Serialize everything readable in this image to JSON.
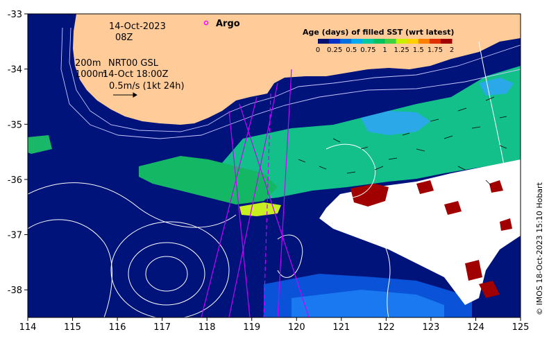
{
  "map": {
    "date": "14-Oct-2023",
    "hour": "08Z",
    "depth_shallow": "200m",
    "depth_deep": "1000m",
    "product": "NRT00 GSL",
    "product_time": "14-Oct 18:00Z",
    "velocity_scale": "0.5m/s (1kt 24h)",
    "argo_label": "Argo",
    "credit": "© IMOS 18-Oct-2023 15:10 Hobart",
    "x_ticks": [
      "114",
      "115",
      "116",
      "117",
      "118",
      "119",
      "120",
      "121",
      "122",
      "123",
      "124",
      "125"
    ],
    "y_ticks": [
      "-33",
      "-34",
      "-35",
      "-36",
      "-37",
      "-38"
    ],
    "x_range": [
      114,
      125
    ],
    "y_range": [
      -33,
      -38.5
    ],
    "colors": {
      "land": "#ffcc99",
      "ocean": "#00137a",
      "argo": "#ff00ff"
    }
  },
  "legend": {
    "title": "Age (days) of filled SST (wrt latest)",
    "ticks": [
      "0",
      "0.25",
      "0.5",
      "0.75",
      "1",
      "1.25",
      "1.5",
      "1.75",
      "2"
    ],
    "colors": [
      "#00106e",
      "#0032c8",
      "#0070e0",
      "#00aaf0",
      "#00c8a0",
      "#00c060",
      "#40d040",
      "#c8f000",
      "#ffd000",
      "#ff8000",
      "#e03000",
      "#a00000"
    ]
  }
}
